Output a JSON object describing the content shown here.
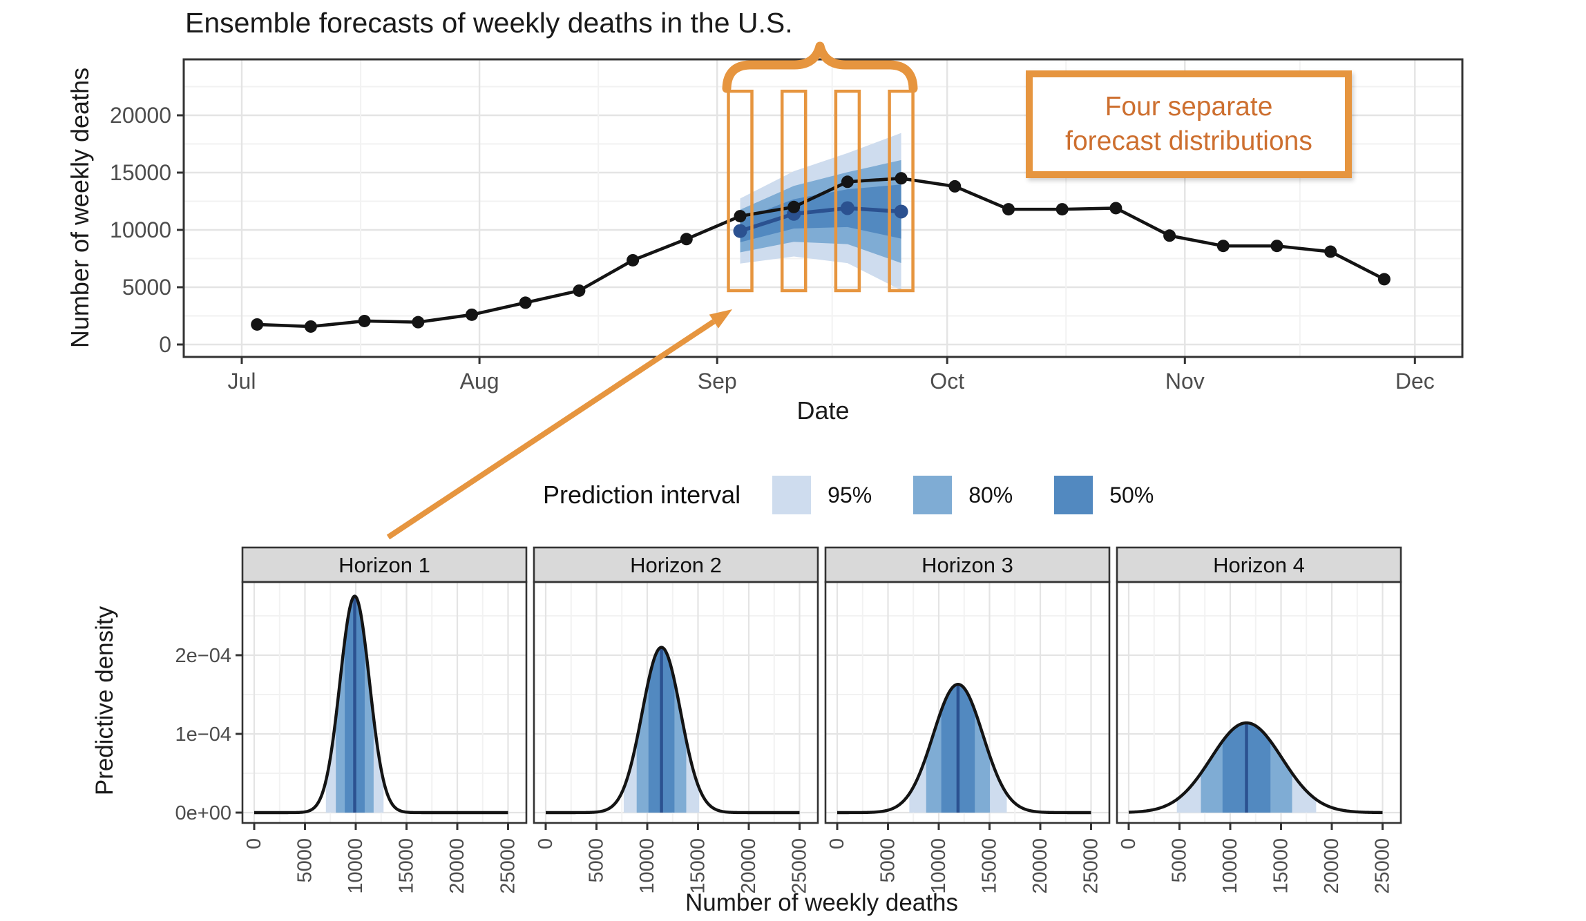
{
  "title": "Ensemble forecasts of weekly deaths in the U.S.",
  "annotation": {
    "line1": "Four separate",
    "line2": "forecast distributions"
  },
  "legend": {
    "title": "Prediction interval",
    "items": [
      {
        "label": "95%",
        "color": "#CEDCEE"
      },
      {
        "label": "80%",
        "color": "#7FACD4"
      },
      {
        "label": "50%",
        "color": "#5289C0"
      }
    ]
  },
  "colors": {
    "orange": "#E6953F",
    "orange_text": "#CD6F2F",
    "band95": "#CEDCEE",
    "band80": "#7FACD4",
    "band50": "#5289C0",
    "forecast_line": "#2B5190",
    "observed_line": "#141414",
    "axis_text": "#4D4D4D",
    "grid_major": "#E4E4E4",
    "grid_minor": "#F2F2F2",
    "panel_border": "#333333",
    "strip_bg": "#D9D9D9"
  },
  "chart_data": [
    {
      "type": "line",
      "title": "Ensemble forecasts of weekly deaths in the U.S.",
      "xlabel": "Date",
      "ylabel": "Number of weekly deaths",
      "ylim": [
        0,
        24800
      ],
      "yticks": [
        0,
        5000,
        10000,
        15000,
        20000
      ],
      "month_ticks": {
        "labels": [
          "Jul",
          "Aug",
          "Sep",
          "Oct",
          "Nov",
          "Dec"
        ],
        "day_offsets": [
          0,
          31,
          62,
          92,
          123,
          153
        ]
      },
      "observed": {
        "day_offsets": [
          2,
          9,
          16,
          23,
          30,
          37,
          44,
          51,
          58,
          65,
          72,
          79,
          86,
          93,
          100,
          107,
          114,
          121,
          128,
          135,
          142,
          149
        ],
        "values": [
          1750,
          1570,
          2050,
          1950,
          2600,
          3650,
          4700,
          7350,
          9200,
          11200,
          12000,
          14200,
          14500,
          13800,
          11800,
          11800,
          11900,
          9500,
          8600,
          8600,
          8100,
          5700
        ]
      },
      "forecast": {
        "day_offsets": [
          65,
          72,
          79,
          86
        ],
        "median": [
          9900,
          11400,
          11900,
          11600
        ],
        "p50": [
          [
            8920,
            10880
          ],
          [
            10120,
            12680
          ],
          [
            10250,
            13550
          ],
          [
            9240,
            13960
          ]
        ],
        "p80": [
          [
            8040,
            11760
          ],
          [
            8960,
            13840
          ],
          [
            8760,
            15040
          ],
          [
            7110,
            16090
          ]
        ],
        "p95": [
          [
            7060,
            12740
          ],
          [
            7680,
            15120
          ],
          [
            7100,
            16700
          ],
          [
            4740,
            18460
          ]
        ]
      },
      "highlight_rect_value_range": [
        4700,
        22100
      ],
      "legend_position": "bottom"
    },
    {
      "type": "area",
      "xlabel": "Number of weekly deaths",
      "ylabel": "Predictive density",
      "xticks": [
        0,
        5000,
        10000,
        15000,
        20000,
        25000
      ],
      "xlim": [
        0,
        25000
      ],
      "ytick_labels": [
        "0e+00",
        "1e−04",
        "2e−04"
      ],
      "ytick_values": [
        0,
        0.0001,
        0.0002
      ],
      "ylim": [
        0,
        0.000293
      ],
      "facets": [
        {
          "label": "Horizon 1",
          "mean": 9900,
          "sd": 1450,
          "peak_density": 0.000275,
          "p50": [
            8920,
            10880
          ],
          "p80": [
            8040,
            11760
          ],
          "p95": [
            7060,
            12740
          ]
        },
        {
          "label": "Horizon 2",
          "mean": 11400,
          "sd": 1900,
          "peak_density": 0.00021,
          "p50": [
            10120,
            12680
          ],
          "p80": [
            8960,
            13840
          ],
          "p95": [
            7680,
            15120
          ]
        },
        {
          "label": "Horizon 3",
          "mean": 11900,
          "sd": 2450,
          "peak_density": 0.000163,
          "p50": [
            10250,
            13550
          ],
          "p80": [
            8760,
            15040
          ],
          "p95": [
            7100,
            16700
          ]
        },
        {
          "label": "Horizon 4",
          "mean": 11600,
          "sd": 3500,
          "peak_density": 0.000114,
          "p50": [
            9240,
            13960
          ],
          "p80": [
            7110,
            16090
          ],
          "p95": [
            4740,
            18460
          ]
        }
      ]
    }
  ]
}
